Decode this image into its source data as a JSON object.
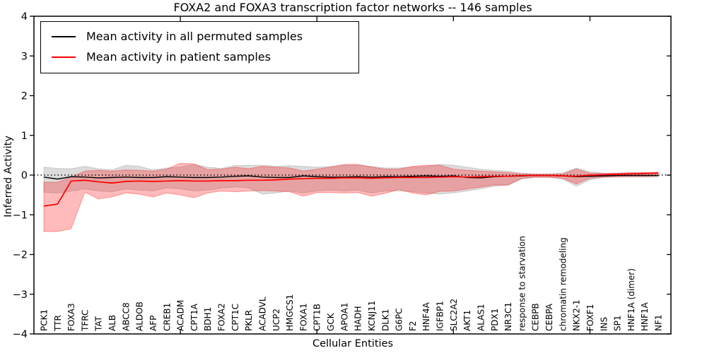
{
  "chart": {
    "title": "FOXA2 and FOXA3 transcription factor networks -- 146 samples"
  },
  "legend": {
    "items": [
      {
        "label": "Mean activity in all permuted samples",
        "color": "#000000"
      },
      {
        "label": "Mean activity in patient samples",
        "color": "#ff0000"
      }
    ]
  },
  "chart_data": {
    "type": "line",
    "title": "FOXA2 and FOXA3 transcription factor networks -- 146 samples",
    "xlabel": "Cellular Entities",
    "ylabel": "Inferred Activity",
    "ylim": [
      -4,
      4
    ],
    "ytick_values": [
      4,
      3,
      2,
      1,
      0,
      -1,
      -2,
      -3,
      -4
    ],
    "ytick_labels": [
      "4",
      "3",
      "2",
      "1",
      "0",
      "−1",
      "−2",
      "−3",
      "−4"
    ],
    "xtick_positions": [
      10,
      20,
      30,
      40
    ],
    "grid": false,
    "legend_position": "upper left",
    "zero_reference_line": true,
    "categories": [
      "PCK1",
      "TTR",
      "FOXA3",
      "TFRC",
      "TAT",
      "ALB",
      "ABCC8",
      "ALDOB",
      "AFP",
      "CREB1",
      "ACADM",
      "CPT1A",
      "BDH1",
      "FOXA2",
      "CPT1C",
      "PKLR",
      "ACADVL",
      "UCP2",
      "HMGCS1",
      "FOXA1",
      "CPT1B",
      "GCK",
      "APOA1",
      "HADH",
      "KCNJ11",
      "DLK1",
      "G6PC",
      "F2",
      "HNF4A",
      "IGFBP1",
      "SLC2A2",
      "AKT1",
      "ALAS1",
      "PDX1",
      "NR3C1",
      "response to starvation",
      "CEBPB",
      "CEBPA",
      "chromatin remodeling",
      "NKX2-1",
      "FOXF1",
      "INS",
      "SP1",
      "HNF1A (dimer)",
      "HNF1A",
      "NF1"
    ],
    "series": [
      {
        "name": "Mean activity in all permuted samples",
        "color": "#000000",
        "values": [
          -0.05,
          -0.1,
          -0.04,
          -0.05,
          -0.07,
          -0.06,
          -0.05,
          -0.06,
          -0.06,
          -0.04,
          -0.05,
          -0.06,
          -0.06,
          -0.05,
          -0.03,
          -0.02,
          -0.05,
          -0.06,
          -0.06,
          -0.02,
          -0.04,
          -0.05,
          -0.05,
          -0.04,
          -0.05,
          -0.04,
          -0.04,
          -0.03,
          -0.02,
          -0.03,
          -0.02,
          -0.06,
          -0.07,
          -0.04,
          -0.03,
          -0.02,
          -0.01,
          -0.01,
          -0.02,
          -0.04,
          -0.03,
          -0.02,
          -0.01,
          -0.01,
          -0.01,
          -0.01
        ],
        "band": {
          "upper": [
            0.2,
            0.17,
            0.16,
            0.22,
            0.16,
            0.13,
            0.25,
            0.22,
            0.13,
            0.18,
            0.2,
            0.27,
            0.2,
            0.17,
            0.24,
            0.25,
            0.25,
            0.22,
            0.24,
            0.22,
            0.2,
            0.22,
            0.25,
            0.25,
            0.22,
            0.18,
            0.18,
            0.2,
            0.22,
            0.27,
            0.25,
            0.2,
            0.15,
            0.12,
            0.1,
            0.05,
            0.03,
            0.03,
            0.05,
            0.18,
            0.08,
            0.05,
            0.05,
            0.06,
            0.06,
            0.07
          ],
          "lower": [
            -0.43,
            -0.45,
            -0.4,
            -0.35,
            -0.4,
            -0.42,
            -0.35,
            -0.38,
            -0.4,
            -0.32,
            -0.35,
            -0.4,
            -0.38,
            -0.33,
            -0.3,
            -0.32,
            -0.48,
            -0.45,
            -0.4,
            -0.45,
            -0.4,
            -0.38,
            -0.4,
            -0.38,
            -0.45,
            -0.4,
            -0.4,
            -0.42,
            -0.45,
            -0.48,
            -0.45,
            -0.4,
            -0.35,
            -0.28,
            -0.25,
            -0.1,
            -0.06,
            -0.06,
            -0.1,
            -0.28,
            -0.12,
            -0.06,
            -0.05,
            -0.05,
            -0.05,
            -0.05
          ],
          "fill": "rgba(128,128,128,0.28)",
          "edge": "rgba(0,0,0,0.15)"
        }
      },
      {
        "name": "Mean activity in patient samples",
        "color": "#ff0000",
        "values": [
          -0.78,
          -0.73,
          -0.15,
          -0.13,
          -0.17,
          -0.2,
          -0.16,
          -0.15,
          -0.16,
          -0.15,
          -0.14,
          -0.15,
          -0.15,
          -0.14,
          -0.14,
          -0.13,
          -0.13,
          -0.12,
          -0.1,
          -0.09,
          -0.08,
          -0.08,
          -0.07,
          -0.07,
          -0.08,
          -0.07,
          -0.06,
          -0.06,
          -0.06,
          -0.05,
          -0.04,
          -0.05,
          -0.04,
          -0.03,
          -0.03,
          -0.01,
          -0.01,
          -0.01,
          -0.02,
          -0.03,
          0.0,
          0.01,
          0.02,
          0.03,
          0.04,
          0.05
        ],
        "band": {
          "upper": [
            -0.18,
            -0.18,
            -0.05,
            0.1,
            0.12,
            0.1,
            0.13,
            0.12,
            0.1,
            0.15,
            0.3,
            0.28,
            0.14,
            0.15,
            0.2,
            0.16,
            0.22,
            0.2,
            0.18,
            0.1,
            0.15,
            0.2,
            0.27,
            0.27,
            0.2,
            0.15,
            0.15,
            0.22,
            0.25,
            0.25,
            0.15,
            0.12,
            0.1,
            0.08,
            0.06,
            0.03,
            0.02,
            0.02,
            0.03,
            0.15,
            0.05,
            0.04,
            0.05,
            0.06,
            0.06,
            0.07
          ],
          "lower": [
            -1.42,
            -1.42,
            -1.35,
            -0.43,
            -0.6,
            -0.55,
            -0.45,
            -0.48,
            -0.55,
            -0.45,
            -0.5,
            -0.57,
            -0.45,
            -0.4,
            -0.42,
            -0.4,
            -0.39,
            -0.4,
            -0.42,
            -0.53,
            -0.44,
            -0.44,
            -0.45,
            -0.44,
            -0.53,
            -0.46,
            -0.36,
            -0.45,
            -0.5,
            -0.41,
            -0.4,
            -0.35,
            -0.3,
            -0.25,
            -0.25,
            -0.08,
            -0.05,
            -0.05,
            -0.08,
            -0.22,
            -0.08,
            -0.05,
            -0.04,
            -0.03,
            -0.03,
            -0.02
          ],
          "fill": "rgba(255,30,30,0.30)",
          "edge": "rgba(255,0,0,0.35)"
        }
      }
    ]
  }
}
